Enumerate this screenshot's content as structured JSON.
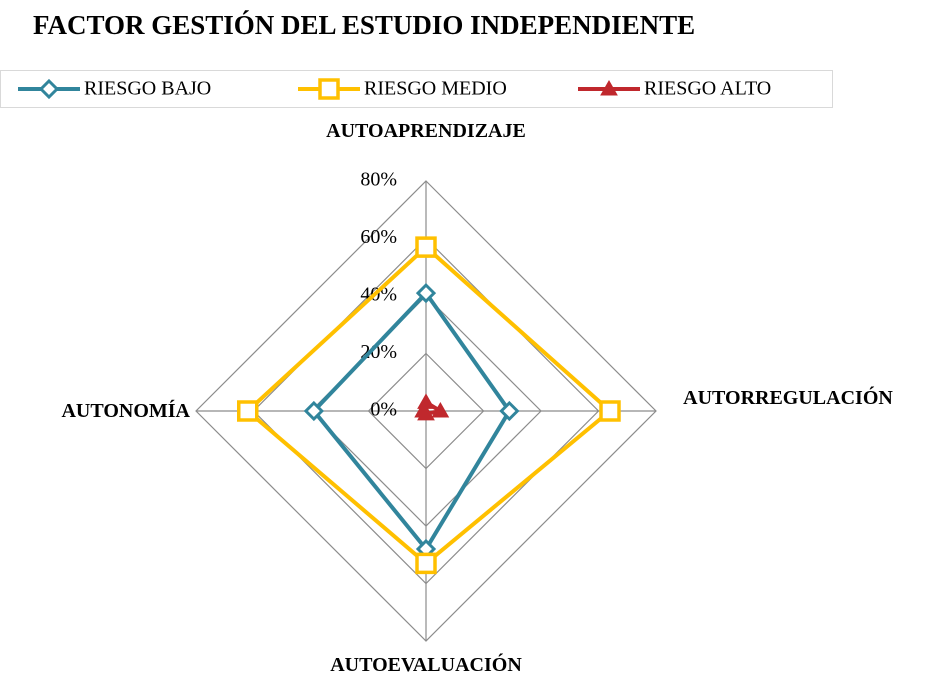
{
  "chart_data": {
    "type": "radar",
    "title": "FACTOR GESTIÓN DEL ESTUDIO INDEPENDIENTE",
    "categories": [
      "AUTOAPRENDIZAJE",
      "AUTORREGULACIÓN",
      "AUTOEVALUACIÓN",
      "AUTONOMÍA"
    ],
    "series": [
      {
        "name": "RIESGO BAJO",
        "color": "#31859c",
        "values": [
          41,
          29,
          48,
          39
        ]
      },
      {
        "name": "RIESGO MEDIO",
        "color": "#ffc000",
        "values": [
          57,
          64,
          53,
          62
        ]
      },
      {
        "name": "RIESGO ALTO",
        "color": "#c0282d",
        "values": [
          3,
          5,
          1,
          1
        ]
      }
    ],
    "ylim": [
      0,
      80
    ],
    "yticks": [
      {
        "value": 0,
        "label": "0%"
      },
      {
        "value": 20,
        "label": "20%"
      },
      {
        "value": 40,
        "label": "40%"
      },
      {
        "value": 60,
        "label": "60%"
      },
      {
        "value": 80,
        "label": "80%"
      }
    ],
    "grid": true,
    "legend": "top"
  }
}
